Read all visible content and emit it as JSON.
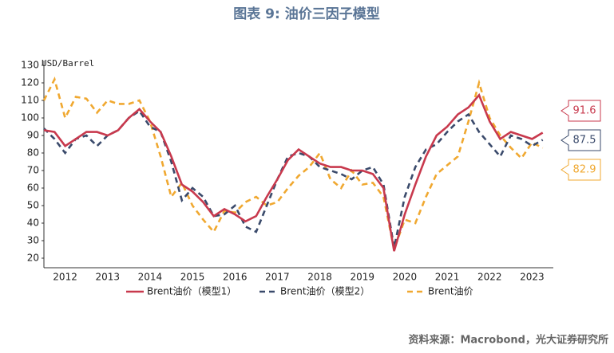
{
  "chart_data": {
    "type": "line",
    "title": "图表 9:  油价三因子模型",
    "y_label": "USD/Barrel",
    "source": "资料来源：Macrobond，光大证券研究所",
    "x": [
      2012,
      2012.25,
      2012.5,
      2012.75,
      2013,
      2013.25,
      2013.5,
      2013.75,
      2014,
      2014.25,
      2014.5,
      2014.75,
      2015,
      2015.25,
      2015.5,
      2015.75,
      2016,
      2016.25,
      2016.5,
      2016.75,
      2017,
      2017.25,
      2017.5,
      2017.75,
      2018,
      2018.25,
      2018.5,
      2018.75,
      2019,
      2019.25,
      2019.5,
      2019.75,
      2020,
      2020.25,
      2020.5,
      2020.75,
      2021,
      2021.25,
      2021.5,
      2021.75,
      2022,
      2022.25,
      2022.5,
      2022.75,
      2023,
      2023.25,
      2023.5,
      2023.75
    ],
    "xlim": [
      2012,
      2024
    ],
    "xticks": [
      {
        "value": 2012.5,
        "label": "2012"
      },
      {
        "value": 2013.5,
        "label": "2013"
      },
      {
        "value": 2014.5,
        "label": "2014"
      },
      {
        "value": 2015.5,
        "label": "2015"
      },
      {
        "value": 2016.5,
        "label": "2016"
      },
      {
        "value": 2017.5,
        "label": "2017"
      },
      {
        "value": 2018.5,
        "label": "2018"
      },
      {
        "value": 2019.5,
        "label": "2019"
      },
      {
        "value": 2020.5,
        "label": "2020"
      },
      {
        "value": 2021.5,
        "label": "2021"
      },
      {
        "value": 2022.5,
        "label": "2022"
      },
      {
        "value": 2023.5,
        "label": "2023"
      }
    ],
    "ylim": [
      20,
      130
    ],
    "yticks": [
      20,
      30,
      40,
      50,
      60,
      70,
      80,
      90,
      100,
      110,
      120,
      130
    ],
    "legend": "bottom",
    "series": [
      {
        "name": "Brent油价（模型1）",
        "color": "#c8394d",
        "dashed": false,
        "values": [
          93,
          92,
          84,
          88,
          92,
          92,
          90,
          93,
          100,
          105,
          98,
          92,
          78,
          62,
          58,
          52,
          44,
          48,
          45,
          41,
          44,
          55,
          65,
          76,
          82,
          78,
          74,
          72,
          72,
          70,
          70,
          68,
          60,
          24,
          45,
          62,
          78,
          90,
          95,
          102,
          106,
          113,
          98,
          88,
          92,
          90,
          88,
          91.6
        ]
      },
      {
        "name": "Brent油价（模型2）",
        "color": "#3a4a6b",
        "dashed": true,
        "values": [
          94,
          88,
          80,
          88,
          90,
          84,
          90,
          93,
          100,
          104,
          95,
          92,
          75,
          53,
          60,
          55,
          44,
          45,
          50,
          38,
          35,
          50,
          65,
          78,
          80,
          78,
          72,
          70,
          68,
          65,
          70,
          72,
          62,
          26,
          55,
          72,
          82,
          85,
          92,
          98,
          102,
          92,
          85,
          78,
          90,
          88,
          84,
          87.5
        ]
      },
      {
        "name": "Brent油价",
        "color": "#f0a830",
        "dashed": true,
        "values": [
          110,
          122,
          100,
          112,
          111,
          103,
          110,
          108,
          108,
          110,
          98,
          78,
          55,
          63,
          50,
          42,
          35,
          47,
          46,
          52,
          55,
          50,
          52,
          60,
          67,
          72,
          80,
          65,
          60,
          70,
          62,
          63,
          55,
          25,
          42,
          40,
          55,
          68,
          73,
          78,
          98,
          120,
          100,
          90,
          83,
          77,
          86,
          82.9
        ]
      }
    ]
  }
}
